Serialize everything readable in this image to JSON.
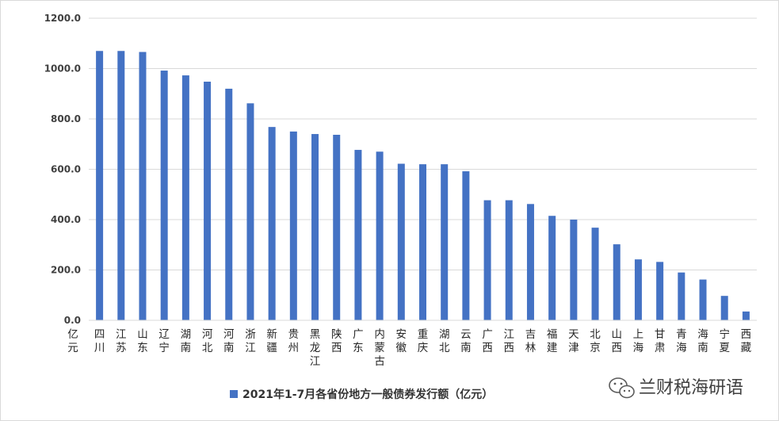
{
  "chart_data": {
    "type": "bar",
    "unit_label": "亿元",
    "categories": [
      "四川",
      "江苏",
      "山东",
      "辽宁",
      "湖南",
      "河北",
      "河南",
      "浙江",
      "新疆",
      "贵州",
      "黑龙江",
      "陕西",
      "广东",
      "内蒙古",
      "安徽",
      "重庆",
      "湖北",
      "云南",
      "广西",
      "江西",
      "吉林",
      "福建",
      "天津",
      "北京",
      "山西",
      "上海",
      "甘肃",
      "青海",
      "海南",
      "宁夏",
      "西藏"
    ],
    "series": [
      {
        "name": "2021年1-7月各省份地方一般债券发行额（亿元）",
        "color": "#4472c4",
        "values": [
          1070,
          1070,
          1066,
          992,
          973,
          948,
          920,
          862,
          768,
          750,
          740,
          737,
          677,
          670,
          622,
          620,
          620,
          592,
          477,
          477,
          462,
          415,
          400,
          368,
          302,
          242,
          232,
          190,
          162,
          97,
          35
        ]
      }
    ],
    "y_ticks": [
      "0.0",
      "200.0",
      "400.0",
      "600.0",
      "800.0",
      "1000.0",
      "1200.0"
    ],
    "ylim": [
      0,
      1200
    ],
    "grid": true,
    "legend_position": "bottom"
  },
  "watermark": {
    "text": "兰财税海研语",
    "icon": "wechat-icon"
  }
}
